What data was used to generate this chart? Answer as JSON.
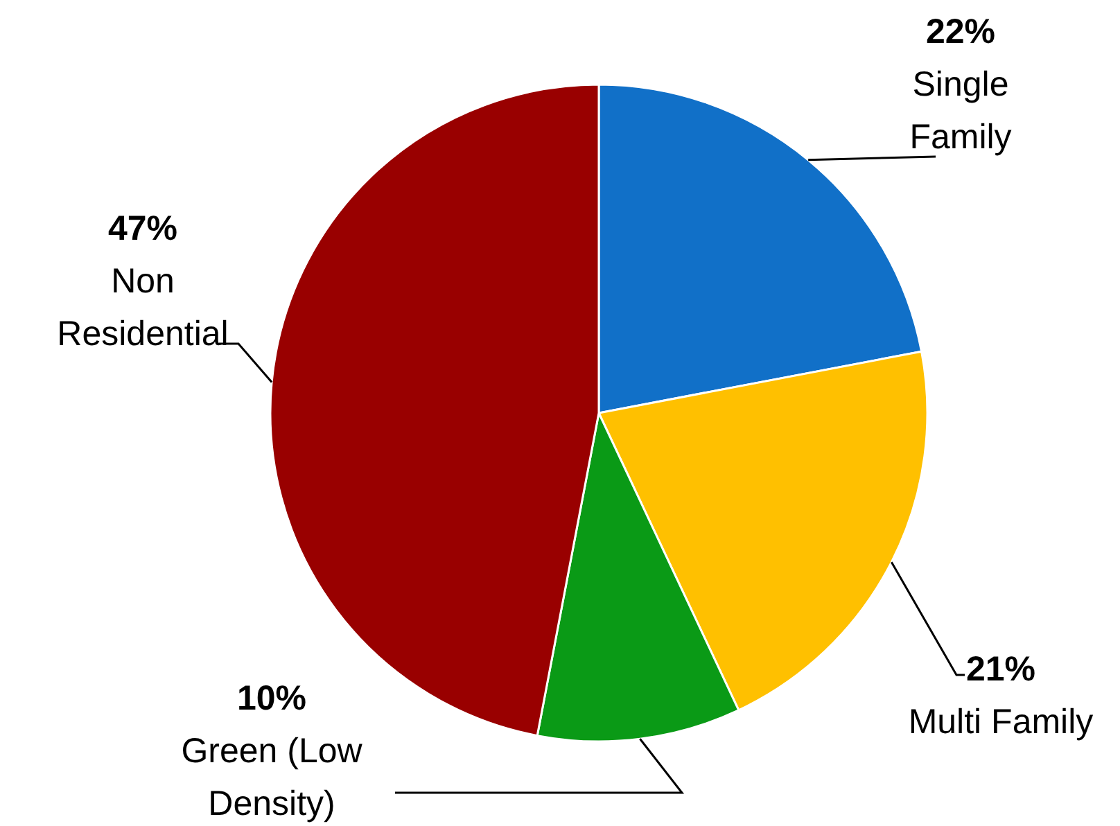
{
  "chart_data": {
    "type": "pie",
    "categories": [
      "Single Family",
      "Multi Family",
      "Green (Low Density)",
      "Non Residential"
    ],
    "values": [
      22,
      21,
      10,
      47
    ],
    "colors": [
      "#1170c8",
      "#ffc000",
      "#0a9a16",
      "#990000"
    ],
    "value_labels": [
      "22%",
      "21%",
      "10%",
      "47%"
    ]
  }
}
